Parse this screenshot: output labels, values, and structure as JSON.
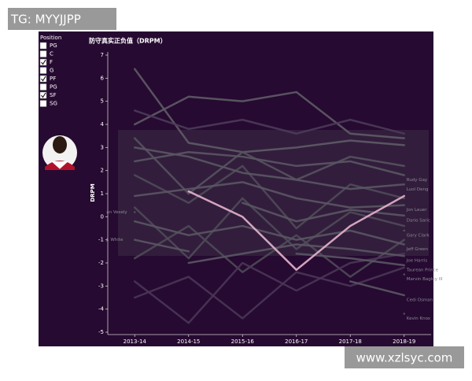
{
  "watermark_top": "TG: MYYJJPP",
  "watermark_bottom": "www.xzlsyc.com",
  "filter": {
    "title": "Position",
    "options": [
      {
        "label": "PG",
        "checked": false
      },
      {
        "label": "C",
        "checked": false
      },
      {
        "label": "F",
        "checked": true
      },
      {
        "label": "G",
        "checked": false
      },
      {
        "label": "PF",
        "checked": true
      },
      {
        "label": "PG",
        "checked": false
      },
      {
        "label": "SF",
        "checked": true
      },
      {
        "label": "SG",
        "checked": false
      }
    ]
  },
  "chart_data": {
    "type": "line",
    "title": "防守真实正负值（DRPM）",
    "y_label": "DRPM",
    "categories": [
      "2013-14",
      "2014-15",
      "2015-16",
      "2016-17",
      "2017-18",
      "2018-19"
    ],
    "ylim": [
      -5,
      7
    ],
    "yticks": [
      -5,
      -4,
      -3,
      -2,
      -1,
      0,
      1,
      2,
      3,
      4,
      5,
      6,
      7
    ],
    "series": [
      {
        "color": "#5e5b66",
        "values": [
          4.0,
          5.2,
          5.0,
          5.4,
          3.6,
          3.4
        ]
      },
      {
        "color": "#5e5b66",
        "values": [
          6.4,
          3.2,
          2.8,
          3.0,
          3.3,
          3.1
        ]
      },
      {
        "color": "#4d3a5a",
        "values": [
          4.6,
          3.8,
          4.2,
          3.6,
          4.2,
          3.6
        ]
      },
      {
        "color": "#57525f",
        "values": [
          3.4,
          1.0,
          2.8,
          1.6,
          2.6,
          2.2
        ]
      },
      {
        "color": "#4f4a58",
        "values": [
          1.8,
          0.6,
          2.2,
          -0.5,
          1.4,
          0.8
        ]
      },
      {
        "color": "#4f4a58",
        "values": [
          0.4,
          -1.8,
          0.8,
          -1.4,
          0.2,
          -0.4
        ]
      },
      {
        "color": "#4f4a58",
        "values": [
          -1.8,
          -0.4,
          -2.4,
          -0.8,
          -2.6,
          -1.0
        ]
      },
      {
        "color": "#4a3557",
        "values": [
          -3.5,
          -2.6,
          -4.4,
          -2.4,
          -3.0,
          -2.2
        ]
      },
      {
        "color": "#4a3557",
        "values": [
          -2.8,
          -4.6,
          -2.0,
          -3.2,
          -2.0,
          -1.6
        ]
      },
      {
        "name": "Rudy Gay",
        "color": "#5a5763",
        "values": [
          2.4,
          2.8,
          2.6,
          2.2,
          2.4,
          1.8
        ]
      },
      {
        "name": "Luol Deng",
        "color": "#5a5763",
        "values": [
          3.0,
          2.6,
          1.9,
          1.6,
          1.2,
          1.4
        ]
      },
      {
        "name": "Jon Leuer",
        "color": "#5a5763",
        "values": [
          0.9,
          1.2,
          1.5,
          0.8,
          0.4,
          0.5
        ]
      },
      {
        "name": "Dario Saric",
        "color": "#5a5763",
        "values": [
          null,
          null,
          0.6,
          -0.2,
          0.3,
          0.05
        ]
      },
      {
        "name": "Gary Clark",
        "color": "#5a5763",
        "values": [
          null,
          null,
          null,
          null,
          null,
          -0.6
        ]
      },
      {
        "name": "Jeff Green",
        "color": "#5a5763",
        "values": [
          -0.2,
          -0.8,
          -0.4,
          -1.0,
          -0.6,
          -1.2
        ]
      },
      {
        "name": "Joe Harris",
        "color": "#5a5763",
        "values": [
          null,
          -2.0,
          -1.6,
          -1.2,
          -1.4,
          -1.7
        ]
      },
      {
        "name": "Taurean Prince",
        "color": "#5a5763",
        "values": [
          null,
          null,
          null,
          -1.6,
          -1.8,
          -2.1
        ]
      },
      {
        "name": "Marvin Bagley III",
        "color": "#5a5763",
        "values": [
          null,
          null,
          null,
          null,
          null,
          -2.5
        ]
      },
      {
        "name": "Cedi Osman",
        "color": "#5a5763",
        "values": [
          null,
          null,
          null,
          null,
          -2.8,
          -3.4
        ]
      },
      {
        "name": "Kevin Knox",
        "color": "#5a5763",
        "values": [
          null,
          null,
          null,
          null,
          null,
          -4.2
        ]
      },
      {
        "name": "an Vesely",
        "color": "#5a5763",
        "values": [
          0.2,
          null,
          null,
          null,
          null,
          null
        ]
      },
      {
        "name": "J. White",
        "color": "#5a5763",
        "values": [
          -1.0,
          -1.5,
          null,
          null,
          null,
          null
        ]
      },
      {
        "color": "#e6b3cc",
        "values": [
          null,
          1.1,
          0.0,
          -2.3,
          -0.4,
          0.9
        ]
      }
    ]
  }
}
